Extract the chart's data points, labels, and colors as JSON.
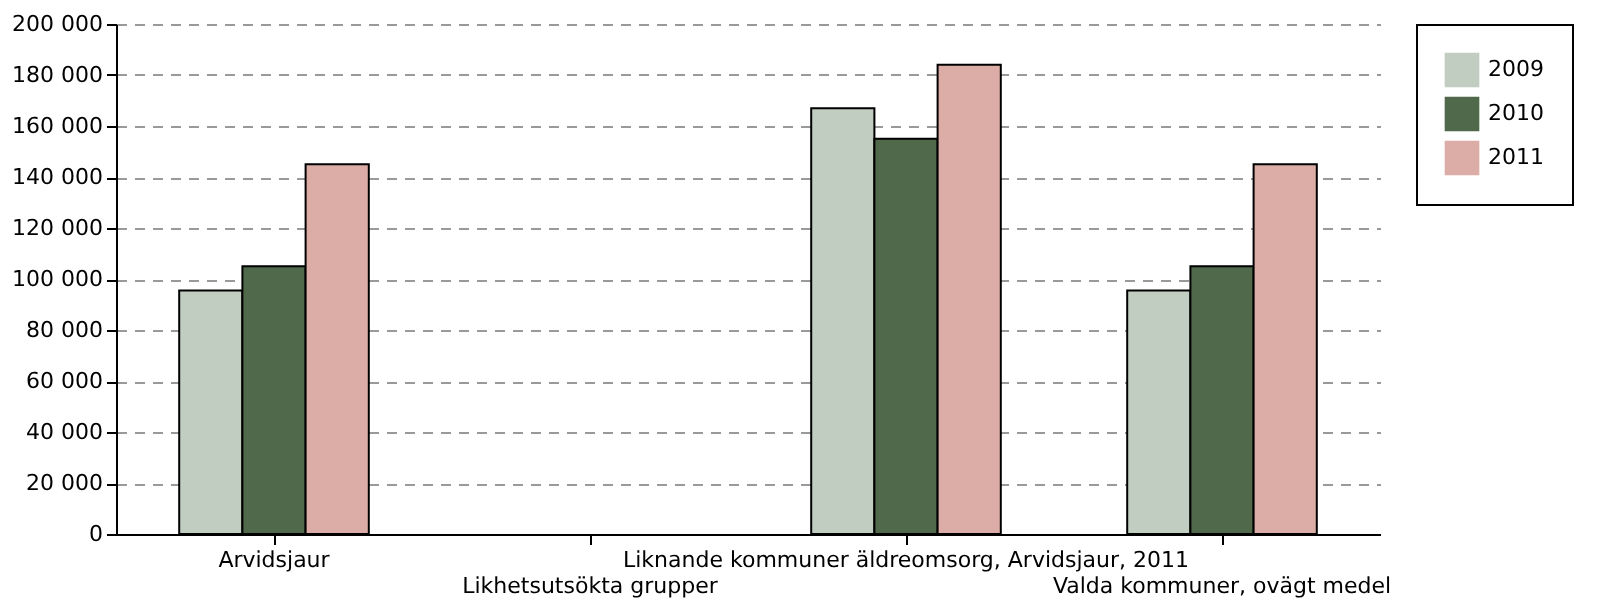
{
  "chart_data": {
    "type": "bar",
    "categories": [
      "Arvidsjaur",
      "Likhetsutsökta grupper",
      "Liknande kommuner äldreomsorg, Arvidsjaur, 2011",
      "Valda kommuner, ovägt medel"
    ],
    "series": [
      {
        "name": "2009",
        "color": "#c0cdc0",
        "values": [
          95500,
          null,
          167000,
          95500
        ]
      },
      {
        "name": "2010",
        "color": "#50694a",
        "values": [
          105000,
          null,
          155000,
          105000
        ]
      },
      {
        "name": "2011",
        "color": "#dcaca6",
        "values": [
          145000,
          null,
          184000,
          145000
        ]
      }
    ],
    "ylim": [
      0,
      200000
    ],
    "yticks": [
      {
        "value": 0,
        "label": "0"
      },
      {
        "value": 20000,
        "label": "20 000"
      },
      {
        "value": 40000,
        "label": "40 000"
      },
      {
        "value": 60000,
        "label": "60 000"
      },
      {
        "value": 80000,
        "label": "80 000"
      },
      {
        "value": 100000,
        "label": "100 000"
      },
      {
        "value": 120000,
        "label": "120 000"
      },
      {
        "value": 140000,
        "label": "140 000"
      },
      {
        "value": 160000,
        "label": "160 000"
      },
      {
        "value": 180000,
        "label": "180 000"
      },
      {
        "value": 200000,
        "label": "200 000"
      }
    ],
    "grid": "y",
    "legend": "top right"
  }
}
